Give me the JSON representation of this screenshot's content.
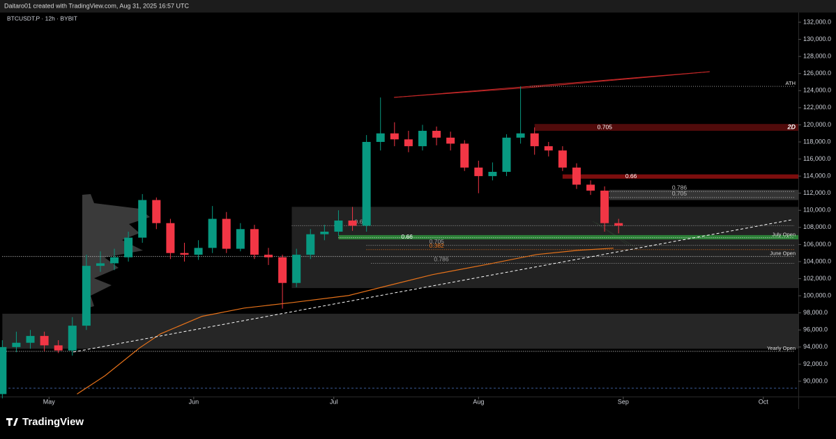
{
  "header": "Daitaro01 created with TradingView.com, Aug 31, 2025 16:57 UTC",
  "footer": {
    "logo": "TradingView"
  },
  "chart_data": {
    "type": "candlestick",
    "symbol": "BTCUSDT.P · 12h · BYBIT",
    "up_color": "#089981",
    "down_color": "#f23645",
    "x": [
      0,
      3,
      6,
      9,
      12,
      15,
      18,
      21,
      24,
      27,
      30,
      33,
      36,
      39,
      42,
      45,
      48,
      51,
      54,
      57,
      60,
      63,
      66,
      69,
      72,
      75,
      78,
      81,
      84,
      87,
      90,
      93,
      96,
      99,
      102,
      105,
      108,
      111,
      114,
      117,
      120,
      123,
      126,
      129,
      132
    ],
    "open": [
      88500,
      94000,
      94500,
      95300,
      94200,
      93600,
      96500,
      103500,
      103800,
      104500,
      106800,
      111200,
      108500,
      105000,
      104800,
      105600,
      109000,
      105500,
      107800,
      104800,
      104500,
      101500,
      104800,
      107200,
      107500,
      108800,
      108200,
      118000,
      119000,
      118300,
      117500,
      119300,
      118500,
      117800,
      115000,
      114000,
      114500,
      118500,
      119000,
      117500,
      117000,
      115000,
      113000,
      112300,
      108500
    ],
    "high": [
      94800,
      95800,
      96000,
      95800,
      94800,
      97500,
      104800,
      105200,
      105500,
      107500,
      111900,
      111500,
      109000,
      106200,
      106500,
      110500,
      109800,
      108500,
      108300,
      105600,
      104800,
      105500,
      107800,
      108300,
      110000,
      110400,
      118800,
      123200,
      120300,
      119300,
      120000,
      119800,
      119200,
      118200,
      115800,
      115600,
      118900,
      124500,
      119700,
      118000,
      117500,
      115500,
      113500,
      112800,
      109000
    ],
    "low": [
      88000,
      93400,
      93800,
      93500,
      93300,
      93000,
      96000,
      102800,
      103000,
      104000,
      106200,
      107800,
      104300,
      104000,
      104200,
      105000,
      105000,
      105200,
      104300,
      103600,
      98500,
      101000,
      104300,
      106500,
      107000,
      107600,
      107500,
      117000,
      117500,
      116800,
      117000,
      117600,
      117000,
      114600,
      112000,
      113500,
      114000,
      117800,
      116500,
      116300,
      114600,
      112500,
      111800,
      107500,
      107300
    ],
    "close": [
      94000,
      94500,
      95300,
      94200,
      93600,
      96500,
      103500,
      103800,
      104500,
      106800,
      111200,
      108500,
      105000,
      104800,
      105600,
      109000,
      105500,
      107800,
      104800,
      104500,
      101500,
      104800,
      107200,
      107500,
      108800,
      108200,
      118000,
      119000,
      118300,
      117500,
      119300,
      118500,
      117800,
      115000,
      114000,
      114500,
      118500,
      119000,
      117500,
      117000,
      115000,
      113000,
      112300,
      108500,
      108200
    ],
    "xlim": [
      -0.5,
      170.5
    ],
    "xticks": [
      {
        "value": 10,
        "label": "May"
      },
      {
        "value": 41,
        "label": "Jun"
      },
      {
        "value": 71,
        "label": "Jul"
      },
      {
        "value": 102,
        "label": "Aug"
      },
      {
        "value": 133,
        "label": "Sep"
      },
      {
        "value": 163,
        "label": "Oct"
      }
    ],
    "ylim": [
      88370,
      133140
    ],
    "yticks": [
      {
        "value": 90000,
        "label": "90,000.0"
      },
      {
        "value": 92000,
        "label": "92,000.0"
      },
      {
        "value": 94000,
        "label": "94,000.0"
      },
      {
        "value": 96000,
        "label": "96,000.0"
      },
      {
        "value": 98000,
        "label": "98,000.0"
      },
      {
        "value": 100000,
        "label": "100,000.0"
      },
      {
        "value": 102000,
        "label": "102,000.0"
      },
      {
        "value": 104000,
        "label": "104,000.0"
      },
      {
        "value": 106000,
        "label": "106,000.0"
      },
      {
        "value": 108000,
        "label": "108,000.0"
      },
      {
        "value": 110000,
        "label": "110,000.0"
      },
      {
        "value": 112000,
        "label": "112,000.0"
      },
      {
        "value": 114000,
        "label": "114,000.0"
      },
      {
        "value": 116000,
        "label": "116,000.0"
      },
      {
        "value": 118000,
        "label": "118,000.0"
      },
      {
        "value": 120000,
        "label": "120,000.0"
      },
      {
        "value": 122000,
        "label": "122,000.0"
      },
      {
        "value": 124000,
        "label": "124,000.0"
      },
      {
        "value": 126000,
        "label": "126,000.0"
      },
      {
        "value": 128000,
        "label": "128,000.0"
      },
      {
        "value": 130000,
        "label": "130,000.0"
      },
      {
        "value": 132000,
        "label": "132,000.0"
      }
    ],
    "zones": [
      {
        "from": 93800,
        "to": 97900,
        "start": 0,
        "color": "#2a2a2a"
      },
      {
        "from": 100900,
        "to": 110400,
        "start": 62,
        "color": "#262626"
      },
      {
        "from": 111200,
        "to": 112400,
        "start": 130,
        "color": "#3a3a3a"
      },
      {
        "label": "0.705",
        "tag": "2D",
        "from": 119300,
        "to": 120100,
        "start": 114,
        "color": "#5a0c0c"
      },
      {
        "label": "0.66",
        "from": 113700,
        "to": 114200,
        "start": 120,
        "color": "#8b1010"
      },
      {
        "label": "0.66",
        "from": 106600,
        "to": 107100,
        "start": 72,
        "color": "#2e8b3a"
      }
    ],
    "levels": [
      {
        "label": "ATH",
        "value": 124500,
        "start": 113,
        "color": "#9e9e9e"
      },
      {
        "label": "0.786",
        "value": 112200,
        "start": 130,
        "color": "#bdbdbd"
      },
      {
        "label": "0.705",
        "value": 111500,
        "start": 130,
        "color": "#bdbdbd"
      },
      {
        "label": "0.618",
        "value": 108200,
        "start": 62,
        "color": "#9e9e9e"
      },
      {
        "label": "July Open",
        "value": 106800,
        "start": 72,
        "color": "#e0e0e0"
      },
      {
        "label": "0.705",
        "value": 105900,
        "start": 78,
        "color": "#9e9e9e"
      },
      {
        "label": "0.382",
        "value": 105400,
        "start": 78,
        "color": "#e8731a"
      },
      {
        "label": "June Open",
        "value": 104600,
        "start": 0,
        "color": "#e0e0e0"
      },
      {
        "label": "0.786",
        "value": 103800,
        "start": 79,
        "color": "#9e9e9e"
      },
      {
        "label": "Yearly Open",
        "value": 93500,
        "start": 0,
        "color": "#e0e0e0"
      }
    ],
    "ma": {
      "color": "#e8731a",
      "x": [
        16,
        22,
        29.4,
        33.9,
        42.8,
        51.8,
        62.2,
        74.2,
        83.1,
        92.1,
        104,
        114.5,
        123.4,
        130.9
      ],
      "values": [
        88500,
        90650,
        93900,
        95550,
        97600,
        98560,
        99210,
        100030,
        101250,
        102470,
        103690,
        104830,
        105320,
        105570
      ]
    },
    "trendline": {
      "x": [
        15.2,
        169
      ],
      "values": [
        93420,
        108880
      ]
    }
  }
}
